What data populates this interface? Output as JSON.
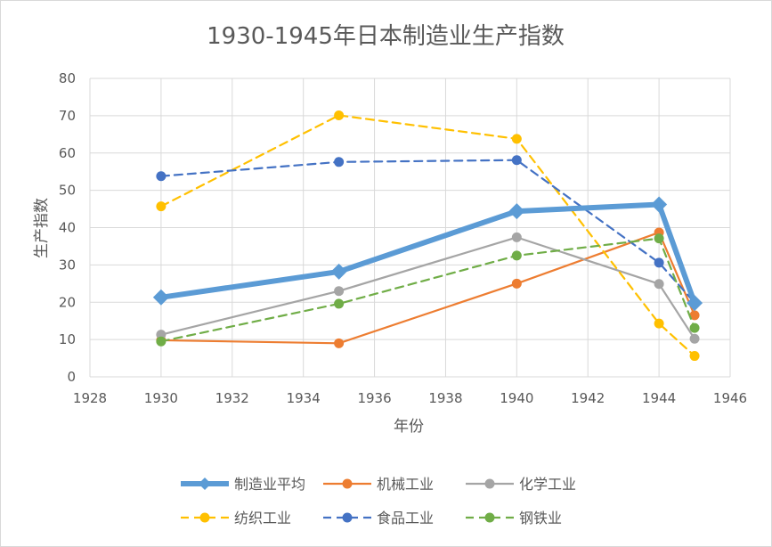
{
  "chart_data": {
    "type": "line",
    "title": "1930-1945年日本制造业生产指数",
    "xlabel": "年份",
    "ylabel": "生产指数",
    "xlim": [
      1928,
      1946
    ],
    "ylim": [
      0,
      80
    ],
    "xticks": [
      "1928",
      "1930",
      "1932",
      "1934",
      "1936",
      "1938",
      "1940",
      "1942",
      "1944",
      "1946"
    ],
    "yticks": [
      "0",
      "10",
      "20",
      "30",
      "40",
      "50",
      "60",
      "70",
      "80"
    ],
    "grid": true,
    "legend_position": "bottom",
    "series": [
      {
        "name": "制造业平均",
        "color": "#5b9bd5",
        "dash": false,
        "marker": "diamond",
        "x": [
          1930,
          1935,
          1940,
          1944,
          1945
        ],
        "y": [
          21.3,
          28.2,
          44.4,
          46.2,
          19.8
        ]
      },
      {
        "name": "机械工业",
        "color": "#ed7d31",
        "dash": false,
        "marker": "circle",
        "x": [
          1930,
          1935,
          1940,
          1944,
          1945
        ],
        "y": [
          9.8,
          9.0,
          25.0,
          38.7,
          16.5
        ]
      },
      {
        "name": "化学工业",
        "color": "#a5a5a5",
        "dash": false,
        "marker": "circle",
        "x": [
          1930,
          1935,
          1940,
          1944,
          1945
        ],
        "y": [
          11.3,
          23.0,
          37.4,
          24.9,
          10.2
        ]
      },
      {
        "name": "纺织工业",
        "color": "#ffc000",
        "dash": true,
        "marker": "circle",
        "x": [
          1930,
          1935,
          1940,
          1944,
          1945
        ],
        "y": [
          45.7,
          70.1,
          63.8,
          14.3,
          5.6
        ]
      },
      {
        "name": "食品工业",
        "color": "#4472c4",
        "dash": true,
        "marker": "circle",
        "x": [
          1930,
          1935,
          1940,
          1944,
          1945
        ],
        "y": [
          53.8,
          57.6,
          58.1,
          30.6,
          19.9
        ]
      },
      {
        "name": "钢铁业",
        "color": "#70ad47",
        "dash": true,
        "marker": "circle",
        "x": [
          1930,
          1935,
          1940,
          1944,
          1945
        ],
        "y": [
          9.5,
          19.6,
          32.5,
          37.1,
          13.1
        ]
      }
    ]
  }
}
